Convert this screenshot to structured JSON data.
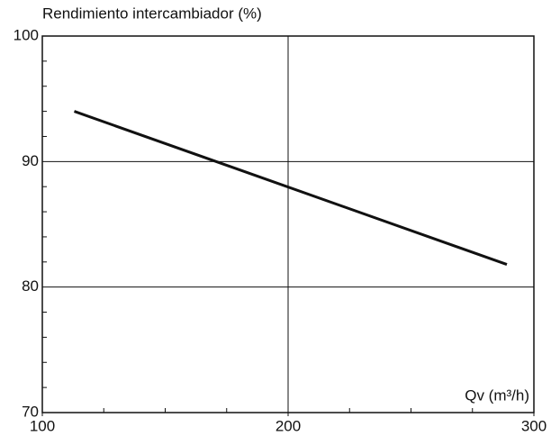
{
  "chart_data": {
    "type": "line",
    "title": "Rendimiento intercambiador (%)",
    "x_label": "Qv (m³/h)",
    "x": [
      113,
      289
    ],
    "series": [
      {
        "name": "Rendimiento",
        "color": "#111111",
        "values": [
          94.0,
          81.8
        ]
      }
    ],
    "xlim": [
      100,
      300
    ],
    "xticks": [
      100,
      200,
      300
    ],
    "ylim": [
      70,
      100
    ],
    "yticks": [
      70,
      80,
      90,
      100
    ],
    "xminorticks": [
      125,
      150,
      175,
      225,
      250,
      275
    ],
    "yminorticks": [
      72,
      74,
      76,
      78,
      82,
      84,
      86,
      88,
      92,
      94,
      96,
      98
    ],
    "grid": true
  }
}
